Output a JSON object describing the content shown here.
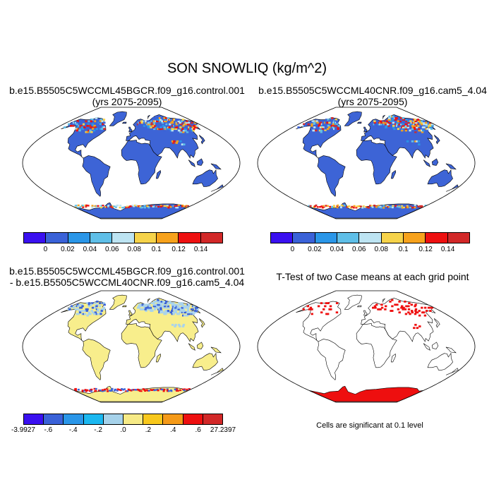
{
  "title": "SON SNOWLIQ (kg/m^2)",
  "panels": [
    {
      "id": "p1",
      "title_lines": [
        "b.e15.B5505C5WCCML45BGCR.f09_g16.control.001",
        "(yrs 2075-2095)"
      ]
    },
    {
      "id": "p2",
      "title_lines": [
        "b.e15.B5505C5WCCML40CNR.f09_g16.cam5_4.04",
        "(yrs 2075-2095)"
      ]
    },
    {
      "id": "p3",
      "title_lines": [
        "b.e15.B5505C5WCCML45BGCR.f09_g16.control.001",
        "- b.e15.B5505C5WCCML40CNR.f09_g16.cam5_4.04"
      ]
    },
    {
      "id": "p4",
      "title_lines": [
        "T-Test of two Case means at each grid point"
      ]
    }
  ],
  "colorbar_main": {
    "colors": [
      "#3a10f0",
      "#3a62d8",
      "#2a96e8",
      "#5fbfe8",
      "#bde4f2",
      "#f6d34a",
      "#f7a21c",
      "#ee1010",
      "#d22828"
    ],
    "labels": [
      "0",
      "0.02",
      "0.04",
      "0.06",
      "0.08",
      "0.1",
      "0.12",
      "0.14"
    ]
  },
  "colorbar_diff": {
    "colors": [
      "#3a10f0",
      "#3a62d8",
      "#2a96e8",
      "#1bb8f0",
      "#a6d2ea",
      "#f6ea86",
      "#f8c81c",
      "#f59a18",
      "#ee1010",
      "#d22828"
    ],
    "labels": [
      "-3.9927",
      "-.6",
      "-.4",
      "-.2",
      ".0",
      ".2",
      ".4",
      ".6",
      "27.2397"
    ]
  },
  "significance_note": "Cells are significant at 0.1 level",
  "colors": {
    "snow_base": "#3d64d6",
    "diff_land": "#f8ee8c",
    "diff_snow": "#a9d3ec",
    "signif": "#ee0f0f"
  }
}
